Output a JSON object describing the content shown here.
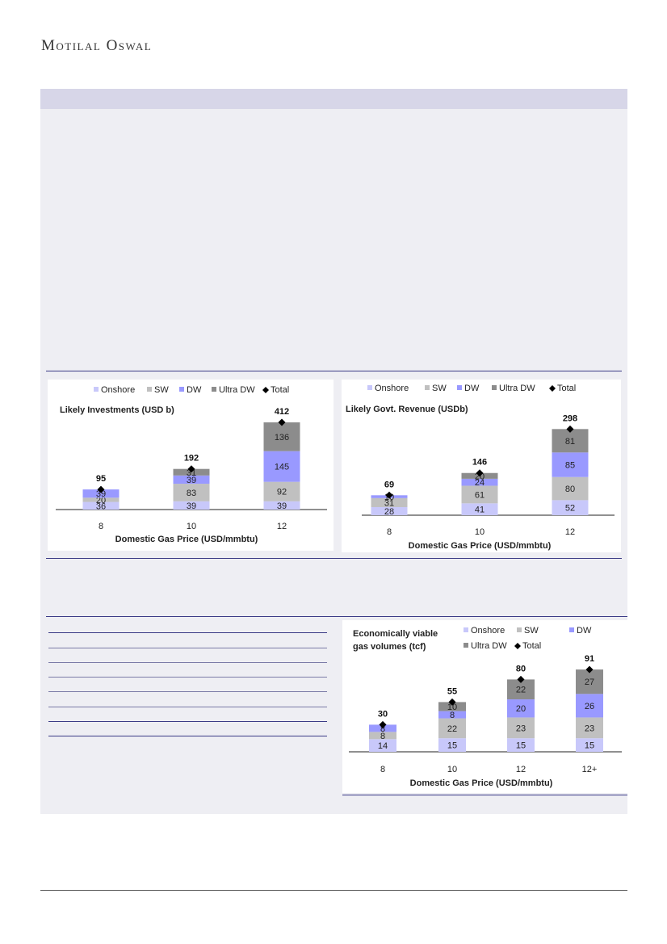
{
  "header": {
    "brand": "Motilal Oswal"
  },
  "colors": {
    "onshore": "#c8c8fa",
    "sw": "#c0c0c0",
    "dw": "#9999ff",
    "ultra_dw": "#8c8c8c",
    "total": "#000000",
    "box_bg": "#eeeef3",
    "box_header": "#d7d6e8",
    "rule": "#3b3b86"
  },
  "chart_data": [
    {
      "type": "bar",
      "stacked": true,
      "title": "Likely Investments (USD b)",
      "xlabel": "Domestic Gas Price (USD/mmbtu)",
      "categories": [
        "8",
        "10",
        "12"
      ],
      "series": [
        {
          "name": "Onshore",
          "values": [
            36,
            39,
            39
          ]
        },
        {
          "name": "SW",
          "values": [
            20,
            83,
            92
          ]
        },
        {
          "name": "DW",
          "values": [
            39,
            39,
            145
          ]
        },
        {
          "name": "Ultra DW",
          "values": [
            0,
            31,
            136
          ]
        }
      ],
      "total": {
        "name": "Total",
        "values": [
          95,
          192,
          412
        ]
      },
      "legend": "top",
      "ylim": [
        0,
        412
      ]
    },
    {
      "type": "bar",
      "stacked": true,
      "title": "Likely  Govt. Revenue  (USDb)",
      "xlabel": "Domestic Gas Price (USD/mmbtu)",
      "categories": [
        "8",
        "10",
        "12"
      ],
      "series": [
        {
          "name": "Onshore",
          "values": [
            28,
            41,
            52
          ]
        },
        {
          "name": "SW",
          "values": [
            31,
            61,
            80
          ]
        },
        {
          "name": "DW",
          "values": [
            10,
            24,
            85
          ]
        },
        {
          "name": "Ultra DW",
          "values": [
            0,
            20,
            81
          ]
        }
      ],
      "total": {
        "name": "Total",
        "values": [
          69,
          146,
          298
        ]
      },
      "legend": "top",
      "ylim": [
        0,
        298
      ]
    },
    {
      "type": "bar",
      "stacked": true,
      "title": "Economically viable gas volumes (tcf)",
      "xlabel": "Domestic Gas Price (USD/mmbtu)",
      "categories": [
        "8",
        "10",
        "12",
        "12+"
      ],
      "series": [
        {
          "name": "Onshore",
          "values": [
            14,
            15,
            15,
            15
          ]
        },
        {
          "name": "SW",
          "values": [
            8,
            22,
            23,
            23
          ]
        },
        {
          "name": "DW",
          "values": [
            8,
            8,
            20,
            26
          ]
        },
        {
          "name": "Ultra DW",
          "values": [
            0,
            10,
            22,
            27
          ]
        }
      ],
      "total": {
        "name": "Total",
        "values": [
          30,
          55,
          80,
          91
        ]
      },
      "legend": "top-right",
      "ylim": [
        0,
        91
      ]
    }
  ]
}
